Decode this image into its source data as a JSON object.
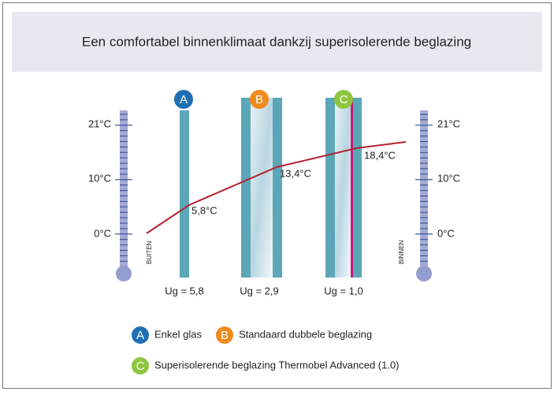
{
  "header": {
    "title": "Een comfortabel binnenklimaat dankzij superisolerende beglazing"
  },
  "thermometers": {
    "left": {
      "ticks": [
        "21°C",
        "10°C",
        "0°C"
      ],
      "side": "BUITEN"
    },
    "right": {
      "ticks": [
        "21°C",
        "10°C",
        "0°C"
      ],
      "side": "BINNEN"
    }
  },
  "glazings": [
    {
      "badge": "A",
      "temperature": "5,8°C",
      "ug": "Ug = 5,8"
    },
    {
      "badge": "B",
      "temperature": "13,4°C",
      "ug": "Ug = 2,9"
    },
    {
      "badge": "C",
      "temperature": "18,4°C",
      "ug": "Ug = 1,0"
    }
  ],
  "legend": [
    "Enkel glas",
    "Standaard dubbele beglazing",
    "Superisolerende beglazing Thermobel Advanced (1.0)"
  ]
}
